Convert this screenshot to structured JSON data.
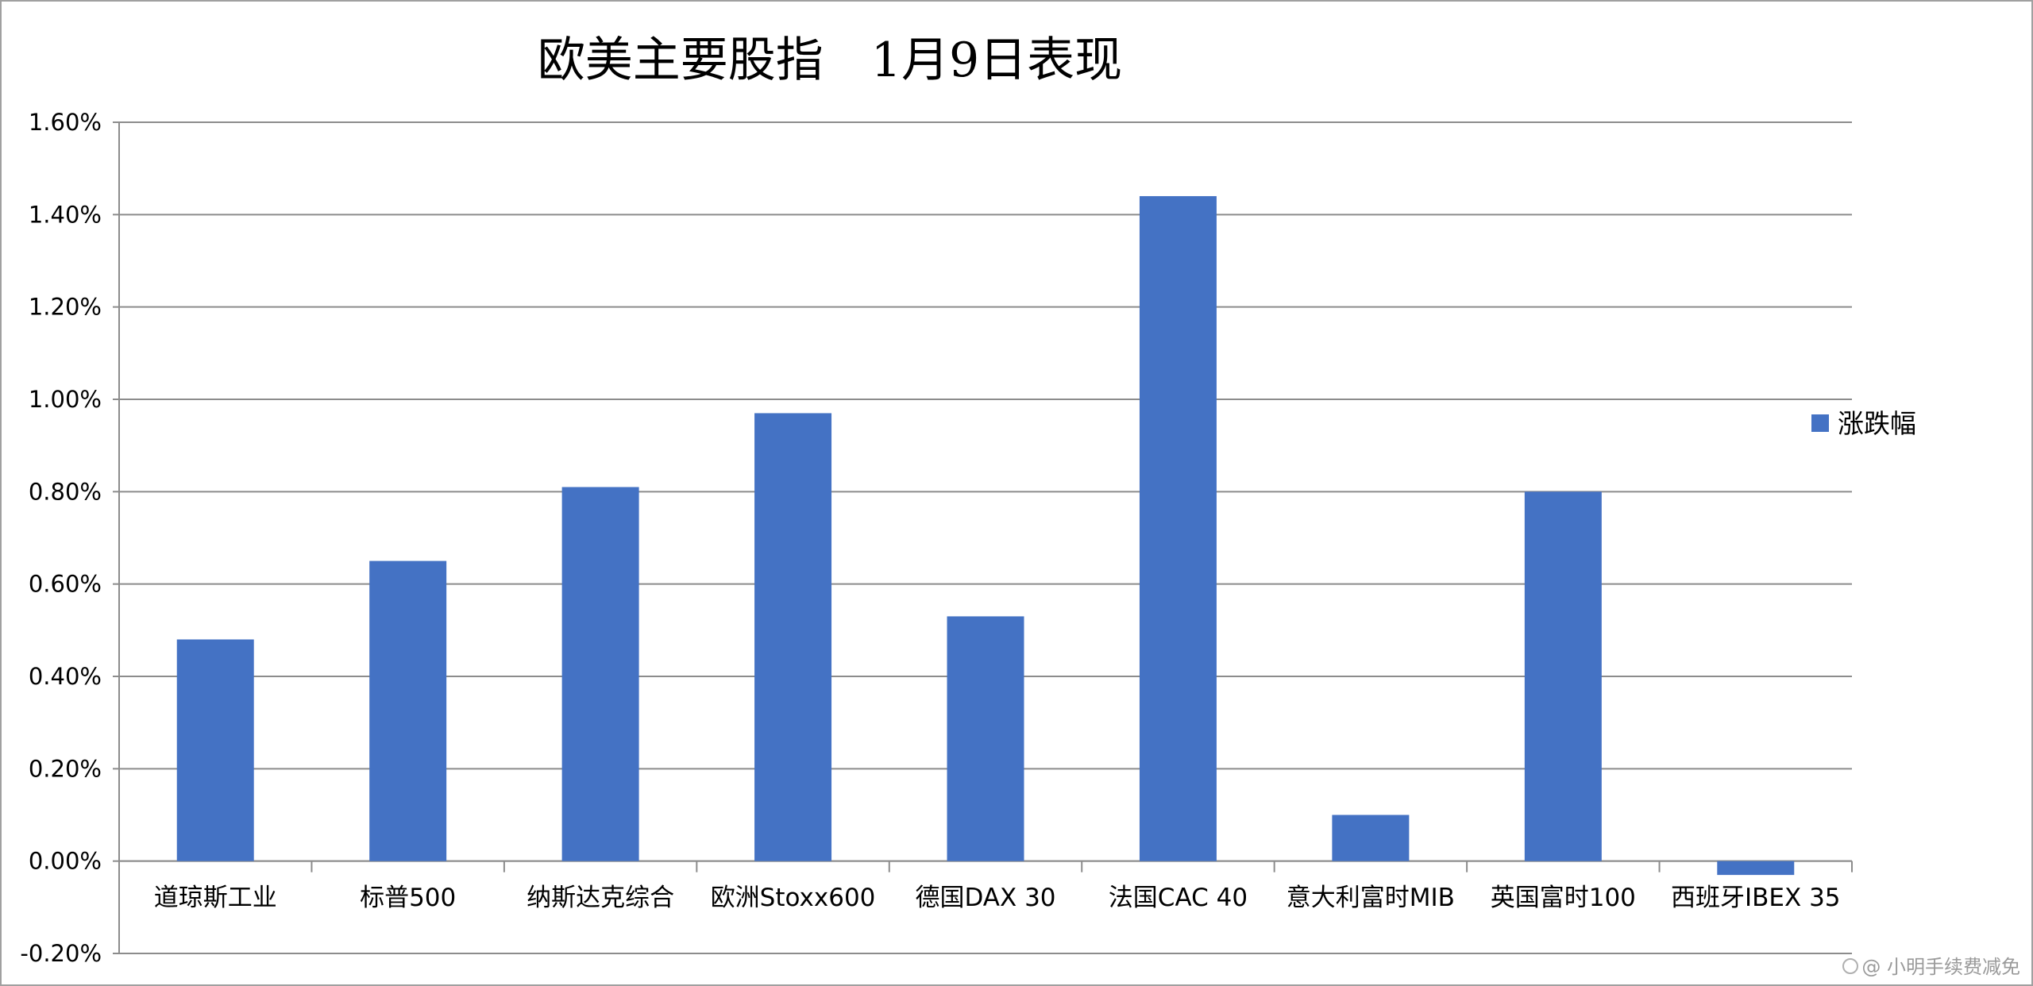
{
  "chart_data": {
    "type": "bar",
    "title": "欧美主要股指　1月9日表现",
    "categories": [
      "道琼斯工业",
      "标普500",
      "纳斯达克综合",
      "欧洲Stoxx600",
      "德国DAX 30",
      "法国CAC 40",
      "意大利富时MIB",
      "英国富时100",
      "西班牙IBEX 35"
    ],
    "series": [
      {
        "name": "涨跌幅",
        "values": [
          0.48,
          0.65,
          0.81,
          0.97,
          0.53,
          1.44,
          0.1,
          0.8,
          -0.03
        ],
        "color": "#4472C4"
      }
    ],
    "value_unit": "%",
    "ylim": [
      -0.2,
      1.6
    ],
    "yticks": [
      -0.2,
      0.0,
      0.2,
      0.4,
      0.6,
      0.8,
      1.0,
      1.2,
      1.4,
      1.6
    ],
    "ytick_labels": [
      "-0.20%",
      "0.00%",
      "0.20%",
      "0.40%",
      "0.60%",
      "0.80%",
      "1.00%",
      "1.20%",
      "1.40%",
      "1.60%"
    ],
    "grid": true,
    "legend_position": "right"
  },
  "watermark": {
    "text": "@ 小明手续费减免"
  }
}
